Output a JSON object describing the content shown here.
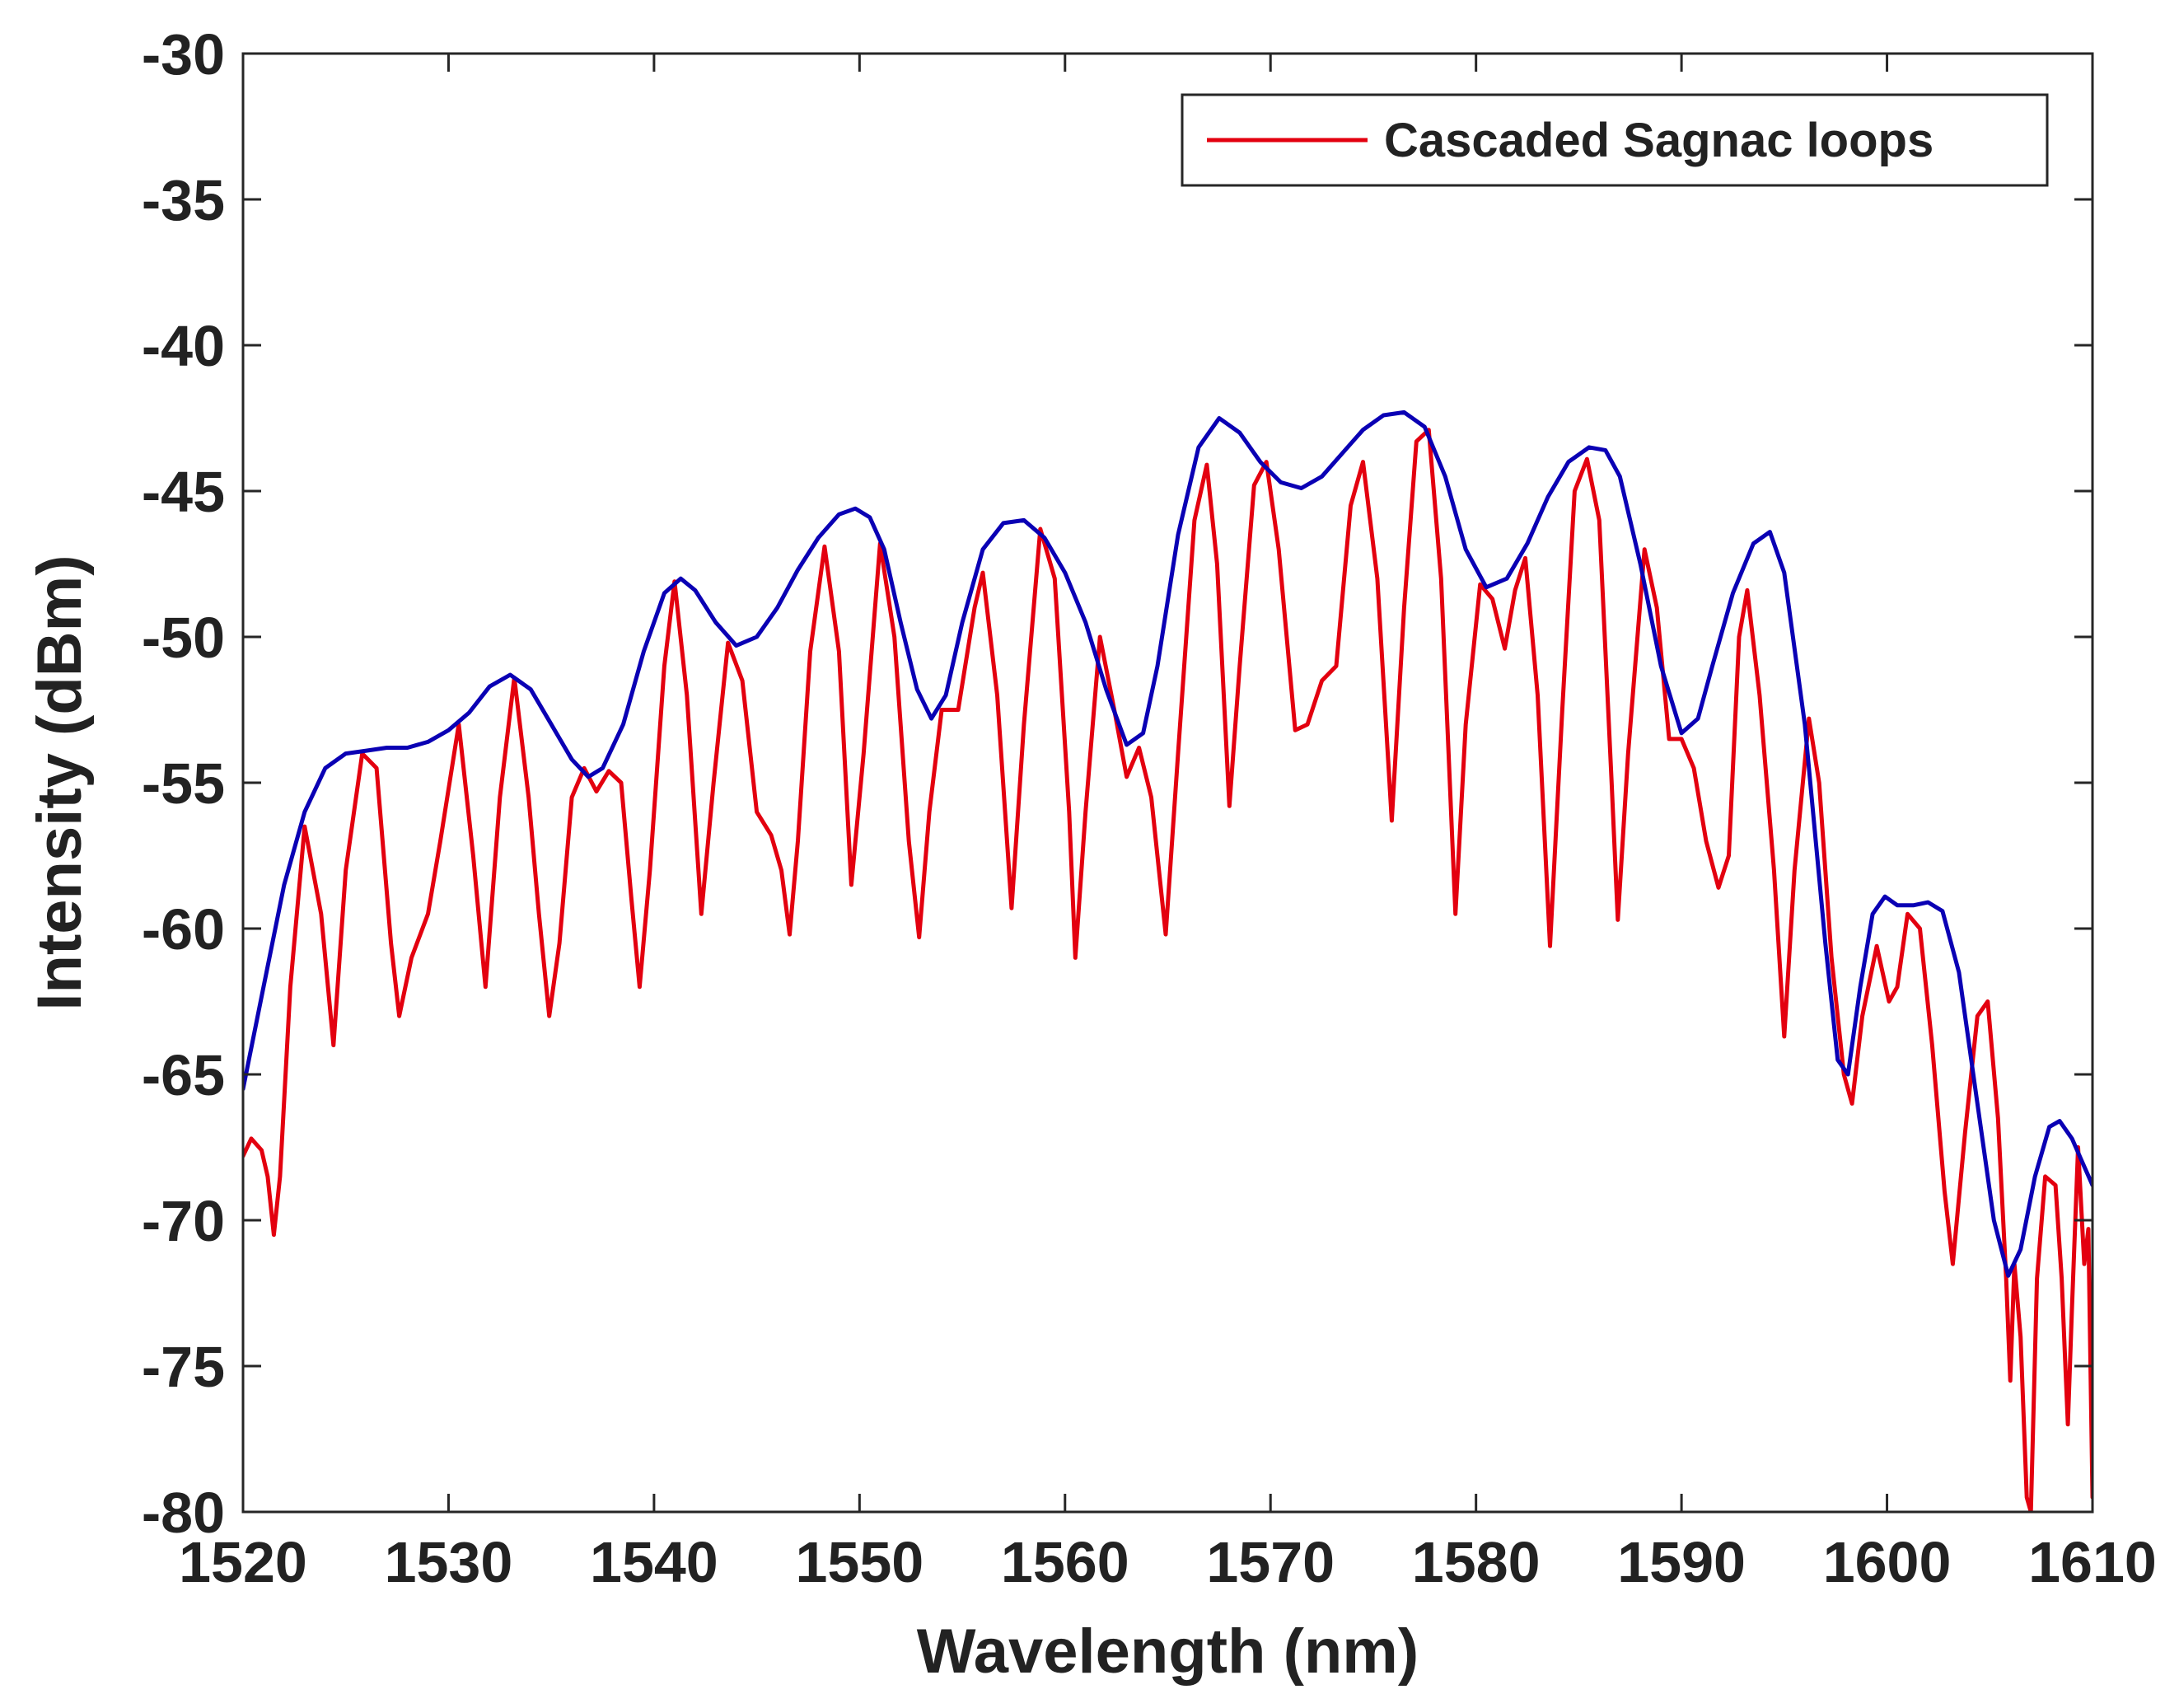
{
  "chart_data": {
    "type": "line",
    "title": "",
    "xlabel": "Wavelength (nm)",
    "ylabel": "Intensity (dBm)",
    "xlim": [
      1520,
      1610
    ],
    "ylim": [
      -80,
      -30
    ],
    "xticks": [
      1520,
      1530,
      1540,
      1550,
      1560,
      1570,
      1580,
      1590,
      1600,
      1610
    ],
    "yticks": [
      -30,
      -35,
      -40,
      -45,
      -50,
      -55,
      -60,
      -65,
      -70,
      -75,
      -80
    ],
    "xtick_labels": [
      "1520",
      "1530",
      "1540",
      "1550",
      "1560",
      "1570",
      "1580",
      "1590",
      "1600",
      "1610"
    ],
    "ytick_labels": [
      "-30",
      "-35",
      "-40",
      "-45",
      "-50",
      "-55",
      "-60",
      "-65",
      "-70",
      "-75",
      "-80"
    ],
    "grid": false,
    "legend_position": "top-right",
    "series": [
      {
        "name": "Cascaded Sagnac loops",
        "color": "#e3000f",
        "in_legend": true,
        "points": [
          [
            1520.0,
            -67.8
          ],
          [
            1520.4,
            -67.2
          ],
          [
            1520.9,
            -67.6
          ],
          [
            1521.2,
            -68.5
          ],
          [
            1521.5,
            -70.5
          ],
          [
            1521.8,
            -68.5
          ],
          [
            1522.3,
            -62.0
          ],
          [
            1523.0,
            -56.5
          ],
          [
            1523.8,
            -59.5
          ],
          [
            1524.4,
            -64.0
          ],
          [
            1525.0,
            -58.0
          ],
          [
            1525.8,
            -54.0
          ],
          [
            1526.5,
            -54.5
          ],
          [
            1527.2,
            -60.5
          ],
          [
            1527.6,
            -63.0
          ],
          [
            1528.2,
            -61.0
          ],
          [
            1529.0,
            -59.5
          ],
          [
            1529.6,
            -57.0
          ],
          [
            1530.5,
            -53.0
          ],
          [
            1531.2,
            -57.5
          ],
          [
            1531.8,
            -62.0
          ],
          [
            1532.5,
            -55.5
          ],
          [
            1533.2,
            -51.4
          ],
          [
            1533.9,
            -55.5
          ],
          [
            1534.4,
            -59.5
          ],
          [
            1534.9,
            -63.0
          ],
          [
            1535.4,
            -60.5
          ],
          [
            1536.0,
            -55.5
          ],
          [
            1536.6,
            -54.5
          ],
          [
            1537.2,
            -55.3
          ],
          [
            1537.8,
            -54.6
          ],
          [
            1538.4,
            -55.0
          ],
          [
            1538.9,
            -59.0
          ],
          [
            1539.3,
            -62.0
          ],
          [
            1539.8,
            -58.0
          ],
          [
            1540.5,
            -51.0
          ],
          [
            1541.0,
            -48.1
          ],
          [
            1541.6,
            -52.0
          ],
          [
            1542.3,
            -59.5
          ],
          [
            1542.9,
            -55.0
          ],
          [
            1543.6,
            -50.2
          ],
          [
            1544.3,
            -51.5
          ],
          [
            1545.0,
            -56.0
          ],
          [
            1545.7,
            -56.8
          ],
          [
            1546.2,
            -58.0
          ],
          [
            1546.6,
            -60.2
          ],
          [
            1547.0,
            -57.0
          ],
          [
            1547.6,
            -50.5
          ],
          [
            1548.3,
            -46.9
          ],
          [
            1549.0,
            -50.5
          ],
          [
            1549.6,
            -58.5
          ],
          [
            1550.2,
            -54.0
          ],
          [
            1551.0,
            -46.8
          ],
          [
            1551.7,
            -50.0
          ],
          [
            1552.4,
            -57.0
          ],
          [
            1552.9,
            -60.3
          ],
          [
            1553.4,
            -56.0
          ],
          [
            1554.0,
            -52.5
          ],
          [
            1554.8,
            -52.5
          ],
          [
            1555.6,
            -49.0
          ],
          [
            1556.0,
            -47.8
          ],
          [
            1556.7,
            -52.0
          ],
          [
            1557.4,
            -59.3
          ],
          [
            1558.0,
            -53.0
          ],
          [
            1558.8,
            -46.3
          ],
          [
            1559.5,
            -48.0
          ],
          [
            1560.2,
            -56.0
          ],
          [
            1560.5,
            -61.0
          ],
          [
            1561.0,
            -56.0
          ],
          [
            1561.7,
            -50.0
          ],
          [
            1562.4,
            -52.5
          ],
          [
            1563.0,
            -54.8
          ],
          [
            1563.6,
            -53.8
          ],
          [
            1564.2,
            -55.5
          ],
          [
            1564.9,
            -60.2
          ],
          [
            1565.5,
            -54.0
          ],
          [
            1566.3,
            -46.0
          ],
          [
            1566.9,
            -44.1
          ],
          [
            1567.4,
            -47.5
          ],
          [
            1568.0,
            -55.8
          ],
          [
            1568.5,
            -51.0
          ],
          [
            1569.2,
            -44.8
          ],
          [
            1569.8,
            -44.0
          ],
          [
            1570.4,
            -47.0
          ],
          [
            1571.2,
            -53.2
          ],
          [
            1571.8,
            -53.0
          ],
          [
            1572.5,
            -51.5
          ],
          [
            1573.2,
            -51.0
          ],
          [
            1573.9,
            -45.5
          ],
          [
            1574.5,
            -44.0
          ],
          [
            1575.2,
            -48.0
          ],
          [
            1575.9,
            -56.3
          ],
          [
            1576.5,
            -49.0
          ],
          [
            1577.1,
            -43.3
          ],
          [
            1577.7,
            -42.9
          ],
          [
            1578.3,
            -48.0
          ],
          [
            1579.0,
            -59.5
          ],
          [
            1579.5,
            -53.0
          ],
          [
            1580.2,
            -48.2
          ],
          [
            1580.8,
            -48.7
          ],
          [
            1581.4,
            -50.4
          ],
          [
            1581.9,
            -48.4
          ],
          [
            1582.4,
            -47.3
          ],
          [
            1583.0,
            -52.0
          ],
          [
            1583.6,
            -60.6
          ],
          [
            1584.2,
            -52.5
          ],
          [
            1584.8,
            -45.0
          ],
          [
            1585.4,
            -43.9
          ],
          [
            1586.0,
            -46.0
          ],
          [
            1586.6,
            -55.0
          ],
          [
            1586.9,
            -59.7
          ],
          [
            1587.4,
            -54.0
          ],
          [
            1588.2,
            -47.0
          ],
          [
            1588.8,
            -49.0
          ],
          [
            1589.4,
            -53.5
          ],
          [
            1590.0,
            -53.5
          ],
          [
            1590.6,
            -54.5
          ],
          [
            1591.2,
            -57.0
          ],
          [
            1591.8,
            -58.6
          ],
          [
            1592.3,
            -57.5
          ],
          [
            1592.8,
            -50.0
          ],
          [
            1593.2,
            -48.4
          ],
          [
            1593.8,
            -52.0
          ],
          [
            1594.5,
            -58.0
          ],
          [
            1595.0,
            -63.7
          ],
          [
            1595.5,
            -58.0
          ],
          [
            1596.2,
            -52.8
          ],
          [
            1596.7,
            -55.0
          ],
          [
            1597.3,
            -61.0
          ],
          [
            1597.9,
            -65.0
          ],
          [
            1598.3,
            -66.0
          ],
          [
            1598.8,
            -63.0
          ],
          [
            1599.5,
            -60.6
          ],
          [
            1600.1,
            -62.5
          ],
          [
            1600.5,
            -62.0
          ],
          [
            1601.0,
            -59.5
          ],
          [
            1601.6,
            -60.0
          ],
          [
            1602.2,
            -64.0
          ],
          [
            1602.8,
            -69.0
          ],
          [
            1603.2,
            -71.5
          ],
          [
            1603.8,
            -67.0
          ],
          [
            1604.4,
            -63.0
          ],
          [
            1604.9,
            -62.5
          ],
          [
            1605.4,
            -66.5
          ],
          [
            1605.8,
            -72.0
          ],
          [
            1606.0,
            -75.5
          ],
          [
            1606.2,
            -71.5
          ],
          [
            1606.5,
            -74.0
          ],
          [
            1606.8,
            -79.5
          ],
          [
            1607.0,
            -80.0
          ],
          [
            1607.3,
            -72.0
          ],
          [
            1607.7,
            -68.5
          ],
          [
            1608.2,
            -68.8
          ],
          [
            1608.5,
            -72.0
          ],
          [
            1608.8,
            -77.0
          ],
          [
            1609.0,
            -73.0
          ],
          [
            1609.3,
            -67.5
          ],
          [
            1609.6,
            -71.5
          ],
          [
            1609.8,
            -70.3
          ],
          [
            1610.0,
            -79.5
          ]
        ]
      },
      {
        "name": "Upper envelope",
        "color": "#0a00b4",
        "in_legend": false,
        "points": [
          [
            1520.0,
            -65.5
          ],
          [
            1521.0,
            -62.0
          ],
          [
            1522.0,
            -58.5
          ],
          [
            1523.0,
            -56.0
          ],
          [
            1524.0,
            -54.5
          ],
          [
            1525.0,
            -54.0
          ],
          [
            1526.0,
            -53.9
          ],
          [
            1527.0,
            -53.8
          ],
          [
            1528.0,
            -53.8
          ],
          [
            1529.0,
            -53.6
          ],
          [
            1530.0,
            -53.2
          ],
          [
            1531.0,
            -52.6
          ],
          [
            1532.0,
            -51.7
          ],
          [
            1533.0,
            -51.3
          ],
          [
            1534.0,
            -51.8
          ],
          [
            1535.0,
            -53.0
          ],
          [
            1536.0,
            -54.2
          ],
          [
            1536.8,
            -54.8
          ],
          [
            1537.5,
            -54.5
          ],
          [
            1538.5,
            -53.0
          ],
          [
            1539.5,
            -50.5
          ],
          [
            1540.5,
            -48.5
          ],
          [
            1541.3,
            -48.0
          ],
          [
            1542.0,
            -48.4
          ],
          [
            1543.0,
            -49.5
          ],
          [
            1544.0,
            -50.3
          ],
          [
            1545.0,
            -50.0
          ],
          [
            1546.0,
            -49.0
          ],
          [
            1547.0,
            -47.7
          ],
          [
            1548.0,
            -46.6
          ],
          [
            1549.0,
            -45.8
          ],
          [
            1549.8,
            -45.6
          ],
          [
            1550.5,
            -45.9
          ],
          [
            1551.2,
            -47.0
          ],
          [
            1552.0,
            -49.5
          ],
          [
            1552.8,
            -51.8
          ],
          [
            1553.5,
            -52.8
          ],
          [
            1554.2,
            -52.0
          ],
          [
            1555.0,
            -49.5
          ],
          [
            1556.0,
            -47.0
          ],
          [
            1557.0,
            -46.1
          ],
          [
            1558.0,
            -46.0
          ],
          [
            1559.0,
            -46.6
          ],
          [
            1560.0,
            -47.8
          ],
          [
            1561.0,
            -49.5
          ],
          [
            1562.0,
            -51.8
          ],
          [
            1563.0,
            -53.7
          ],
          [
            1563.8,
            -53.3
          ],
          [
            1564.5,
            -51.0
          ],
          [
            1565.5,
            -46.5
          ],
          [
            1566.5,
            -43.5
          ],
          [
            1567.5,
            -42.5
          ],
          [
            1568.5,
            -43.0
          ],
          [
            1569.5,
            -44.0
          ],
          [
            1570.5,
            -44.7
          ],
          [
            1571.5,
            -44.9
          ],
          [
            1572.5,
            -44.5
          ],
          [
            1573.5,
            -43.7
          ],
          [
            1574.5,
            -42.9
          ],
          [
            1575.5,
            -42.4
          ],
          [
            1576.5,
            -42.3
          ],
          [
            1577.5,
            -42.8
          ],
          [
            1578.5,
            -44.5
          ],
          [
            1579.5,
            -47.0
          ],
          [
            1580.5,
            -48.3
          ],
          [
            1581.5,
            -48.0
          ],
          [
            1582.5,
            -46.8
          ],
          [
            1583.5,
            -45.2
          ],
          [
            1584.5,
            -44.0
          ],
          [
            1585.5,
            -43.5
          ],
          [
            1586.3,
            -43.6
          ],
          [
            1587.0,
            -44.5
          ],
          [
            1588.0,
            -47.5
          ],
          [
            1589.0,
            -51.0
          ],
          [
            1590.0,
            -53.3
          ],
          [
            1590.8,
            -52.8
          ],
          [
            1591.5,
            -51.0
          ],
          [
            1592.5,
            -48.5
          ],
          [
            1593.5,
            -46.8
          ],
          [
            1594.3,
            -46.4
          ],
          [
            1595.0,
            -47.8
          ],
          [
            1596.0,
            -53.0
          ],
          [
            1597.0,
            -60.5
          ],
          [
            1597.6,
            -64.5
          ],
          [
            1598.1,
            -65.0
          ],
          [
            1598.7,
            -62.0
          ],
          [
            1599.3,
            -59.5
          ],
          [
            1599.9,
            -58.9
          ],
          [
            1600.5,
            -59.2
          ],
          [
            1601.3,
            -59.2
          ],
          [
            1602.0,
            -59.1
          ],
          [
            1602.7,
            -59.4
          ],
          [
            1603.5,
            -61.5
          ],
          [
            1604.3,
            -65.5
          ],
          [
            1605.2,
            -70.0
          ],
          [
            1605.9,
            -71.9
          ],
          [
            1606.5,
            -71.0
          ],
          [
            1607.2,
            -68.5
          ],
          [
            1607.9,
            -66.8
          ],
          [
            1608.4,
            -66.6
          ],
          [
            1609.0,
            -67.2
          ],
          [
            1609.5,
            -68.0
          ],
          [
            1610.0,
            -68.8
          ]
        ]
      }
    ]
  }
}
